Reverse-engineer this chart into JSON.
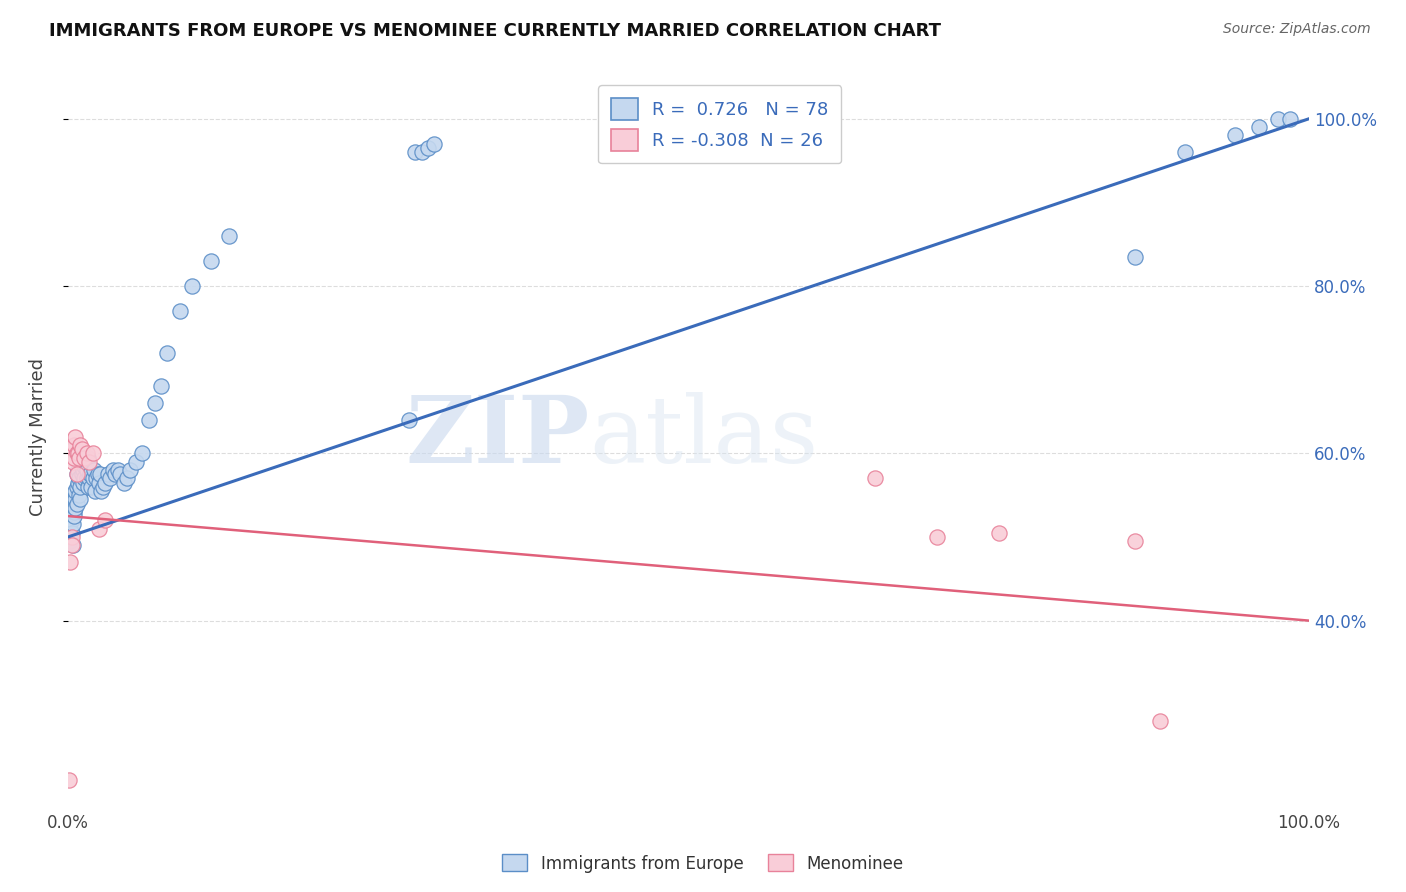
{
  "title": "IMMIGRANTS FROM EUROPE VS MENOMINEE CURRENTLY MARRIED CORRELATION CHART",
  "source": "Source: ZipAtlas.com",
  "ylabel": "Currently Married",
  "blue_R": 0.726,
  "blue_N": 78,
  "pink_R": -0.308,
  "pink_N": 26,
  "blue_color": "#c5d8ef",
  "pink_color": "#f9cdd8",
  "blue_edge_color": "#5b8ec7",
  "pink_edge_color": "#e8829a",
  "blue_line_color": "#3a6bba",
  "pink_line_color": "#e0607a",
  "watermark_zip": "ZIP",
  "watermark_atlas": "atlas",
  "blue_line_x0": 0.0,
  "blue_line_y0": 0.5,
  "blue_line_x1": 1.0,
  "blue_line_y1": 1.0,
  "pink_line_x0": 0.0,
  "pink_line_y0": 0.525,
  "pink_line_x1": 1.0,
  "pink_line_y1": 0.4,
  "ylim_min": 0.18,
  "ylim_max": 1.06,
  "xlim_min": 0.0,
  "xlim_max": 1.0,
  "yticks": [
    0.4,
    0.6,
    0.8,
    1.0
  ],
  "ytick_labels": [
    "40.0%",
    "60.0%",
    "80.0%",
    "100.0%"
  ],
  "xtick_vals": [
    0.0,
    1.0
  ],
  "xtick_labels": [
    "0.0%",
    "100.0%"
  ],
  "right_tick_color": "#3a6bba",
  "grid_color": "#dddddd",
  "blue_scatter_x": [
    0.001,
    0.002,
    0.002,
    0.003,
    0.003,
    0.004,
    0.004,
    0.004,
    0.005,
    0.005,
    0.005,
    0.006,
    0.006,
    0.006,
    0.007,
    0.007,
    0.007,
    0.008,
    0.008,
    0.009,
    0.009,
    0.01,
    0.01,
    0.01,
    0.011,
    0.011,
    0.012,
    0.012,
    0.013,
    0.013,
    0.014,
    0.015,
    0.015,
    0.016,
    0.016,
    0.017,
    0.018,
    0.019,
    0.02,
    0.021,
    0.022,
    0.023,
    0.024,
    0.025,
    0.026,
    0.027,
    0.028,
    0.03,
    0.032,
    0.034,
    0.036,
    0.038,
    0.04,
    0.042,
    0.045,
    0.048,
    0.05,
    0.055,
    0.06,
    0.065,
    0.07,
    0.075,
    0.08,
    0.09,
    0.1,
    0.115,
    0.13,
    0.275,
    0.28,
    0.285,
    0.29,
    0.295,
    0.86,
    0.9,
    0.94,
    0.96,
    0.975,
    0.985
  ],
  "blue_scatter_y": [
    0.5,
    0.51,
    0.495,
    0.52,
    0.505,
    0.515,
    0.49,
    0.54,
    0.53,
    0.525,
    0.545,
    0.545,
    0.555,
    0.535,
    0.56,
    0.54,
    0.575,
    0.565,
    0.58,
    0.55,
    0.57,
    0.545,
    0.56,
    0.59,
    0.575,
    0.6,
    0.565,
    0.58,
    0.585,
    0.57,
    0.59,
    0.57,
    0.58,
    0.595,
    0.56,
    0.57,
    0.575,
    0.56,
    0.57,
    0.58,
    0.555,
    0.57,
    0.575,
    0.565,
    0.575,
    0.555,
    0.56,
    0.565,
    0.575,
    0.57,
    0.58,
    0.575,
    0.58,
    0.575,
    0.565,
    0.57,
    0.58,
    0.59,
    0.6,
    0.64,
    0.66,
    0.68,
    0.72,
    0.77,
    0.8,
    0.83,
    0.86,
    0.64,
    0.96,
    0.96,
    0.965,
    0.97,
    0.835,
    0.96,
    0.98,
    0.99,
    1.0,
    1.0
  ],
  "pink_scatter_x": [
    0.001,
    0.002,
    0.003,
    0.003,
    0.004,
    0.004,
    0.005,
    0.005,
    0.006,
    0.007,
    0.007,
    0.008,
    0.009,
    0.01,
    0.011,
    0.013,
    0.015,
    0.017,
    0.02,
    0.025,
    0.03,
    0.65,
    0.7,
    0.75,
    0.86,
    0.88
  ],
  "pink_scatter_y": [
    0.21,
    0.47,
    0.5,
    0.49,
    0.59,
    0.605,
    0.61,
    0.595,
    0.62,
    0.6,
    0.575,
    0.6,
    0.595,
    0.61,
    0.605,
    0.595,
    0.6,
    0.59,
    0.6,
    0.51,
    0.52,
    0.57,
    0.5,
    0.505,
    0.495,
    0.28
  ]
}
